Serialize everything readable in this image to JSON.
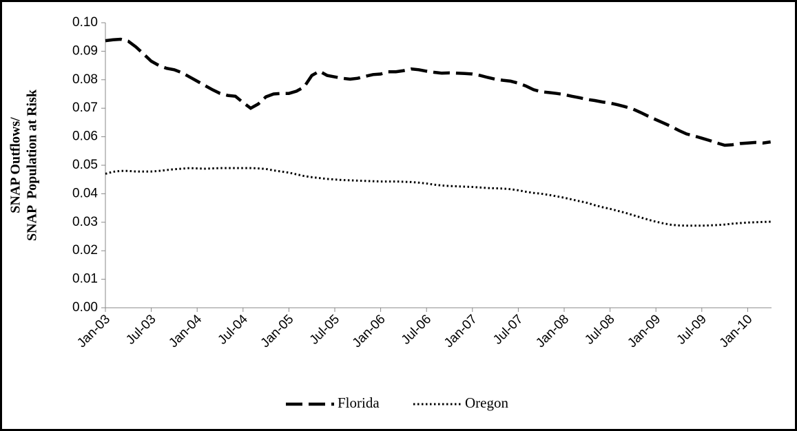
{
  "chart_data": {
    "type": "line",
    "ylabel": [
      "SNAP Outflows/",
      "SNAP  Population at Risk"
    ],
    "categories": [
      "Jan-03",
      null,
      null,
      null,
      null,
      null,
      "Jul-03",
      null,
      null,
      null,
      null,
      null,
      "Jan-04",
      null,
      null,
      null,
      null,
      null,
      "Jul-04",
      null,
      null,
      null,
      null,
      null,
      "Jan-05",
      null,
      null,
      null,
      null,
      null,
      "Jul-05",
      null,
      null,
      null,
      null,
      null,
      "Jan-06",
      null,
      null,
      null,
      null,
      null,
      "Jul-06",
      null,
      null,
      null,
      null,
      null,
      "Jan-07",
      null,
      null,
      null,
      null,
      null,
      "Jul-07",
      null,
      null,
      null,
      null,
      null,
      "Jan-08",
      null,
      null,
      null,
      null,
      null,
      "Jul-08",
      null,
      null,
      null,
      null,
      null,
      "Jan-09",
      null,
      null,
      null,
      null,
      null,
      "Jul-09",
      null,
      null,
      null,
      null,
      null,
      "Jan-10",
      null,
      null,
      null
    ],
    "series": [
      {
        "name": "Florida",
        "color": "#000000",
        "dash": "dashed",
        "values": [
          0.0937,
          0.094,
          0.0942,
          0.0935,
          0.0915,
          0.089,
          0.0865,
          0.085,
          0.084,
          0.0835,
          0.0825,
          0.081,
          0.0795,
          0.078,
          0.0765,
          0.0752,
          0.0745,
          0.0742,
          0.072,
          0.07,
          0.0715,
          0.074,
          0.075,
          0.0752,
          0.0752,
          0.076,
          0.0775,
          0.0815,
          0.083,
          0.0815,
          0.081,
          0.0805,
          0.0802,
          0.0805,
          0.0812,
          0.0818,
          0.082,
          0.0828,
          0.0828,
          0.0832,
          0.0838,
          0.0835,
          0.083,
          0.0826,
          0.0823,
          0.0824,
          0.0823,
          0.0822,
          0.082,
          0.0815,
          0.0808,
          0.0802,
          0.0798,
          0.0795,
          0.0788,
          0.0778,
          0.0765,
          0.0758,
          0.0755,
          0.0752,
          0.0748,
          0.0742,
          0.0737,
          0.0731,
          0.0727,
          0.0722,
          0.0718,
          0.0712,
          0.0705,
          0.0697,
          0.0685,
          0.0672,
          0.066,
          0.0648,
          0.0636,
          0.0622,
          0.061,
          0.0603,
          0.0595,
          0.0587,
          0.0578,
          0.057,
          0.0572,
          0.0576,
          0.0578,
          0.058,
          0.0578,
          0.0582
        ]
      },
      {
        "name": "Oregon",
        "color": "#000000",
        "dash": "dotted",
        "values": [
          0.047,
          0.0477,
          0.048,
          0.048,
          0.0478,
          0.0478,
          0.0478,
          0.048,
          0.0483,
          0.0486,
          0.0488,
          0.049,
          0.0489,
          0.0488,
          0.0489,
          0.049,
          0.049,
          0.049,
          0.049,
          0.049,
          0.0489,
          0.0487,
          0.0482,
          0.0478,
          0.0474,
          0.0468,
          0.0462,
          0.0458,
          0.0455,
          0.0452,
          0.045,
          0.0448,
          0.0447,
          0.0446,
          0.0445,
          0.0444,
          0.0443,
          0.0443,
          0.0443,
          0.0442,
          0.0441,
          0.0439,
          0.0436,
          0.0432,
          0.0429,
          0.0427,
          0.0426,
          0.0425,
          0.0424,
          0.0422,
          0.042,
          0.0419,
          0.0418,
          0.0416,
          0.0412,
          0.0407,
          0.0403,
          0.04,
          0.0396,
          0.0391,
          0.0386,
          0.038,
          0.0374,
          0.0368,
          0.036,
          0.0353,
          0.0347,
          0.034,
          0.0333,
          0.0325,
          0.0317,
          0.0309,
          0.0302,
          0.0296,
          0.0291,
          0.0289,
          0.0288,
          0.0288,
          0.0288,
          0.0289,
          0.029,
          0.0292,
          0.0295,
          0.0297,
          0.0299,
          0.03,
          0.0301,
          0.0302
        ]
      }
    ],
    "ylim": [
      0,
      0.1
    ],
    "yticks": [
      {
        "value": 0,
        "label": "0.00"
      },
      {
        "value": 0.01,
        "label": "0.01"
      },
      {
        "value": 0.02,
        "label": "0.02"
      },
      {
        "value": 0.03,
        "label": "0.03"
      },
      {
        "value": 0.04,
        "label": "0.04"
      },
      {
        "value": 0.05,
        "label": "0.05"
      },
      {
        "value": 0.06,
        "label": "0.06"
      },
      {
        "value": 0.07,
        "label": "0.07"
      },
      {
        "value": 0.08,
        "label": "0.08"
      },
      {
        "value": 0.09,
        "label": "0.09"
      },
      {
        "value": 0.1,
        "label": "0.10"
      }
    ],
    "grid": false,
    "legend": "bottom"
  }
}
